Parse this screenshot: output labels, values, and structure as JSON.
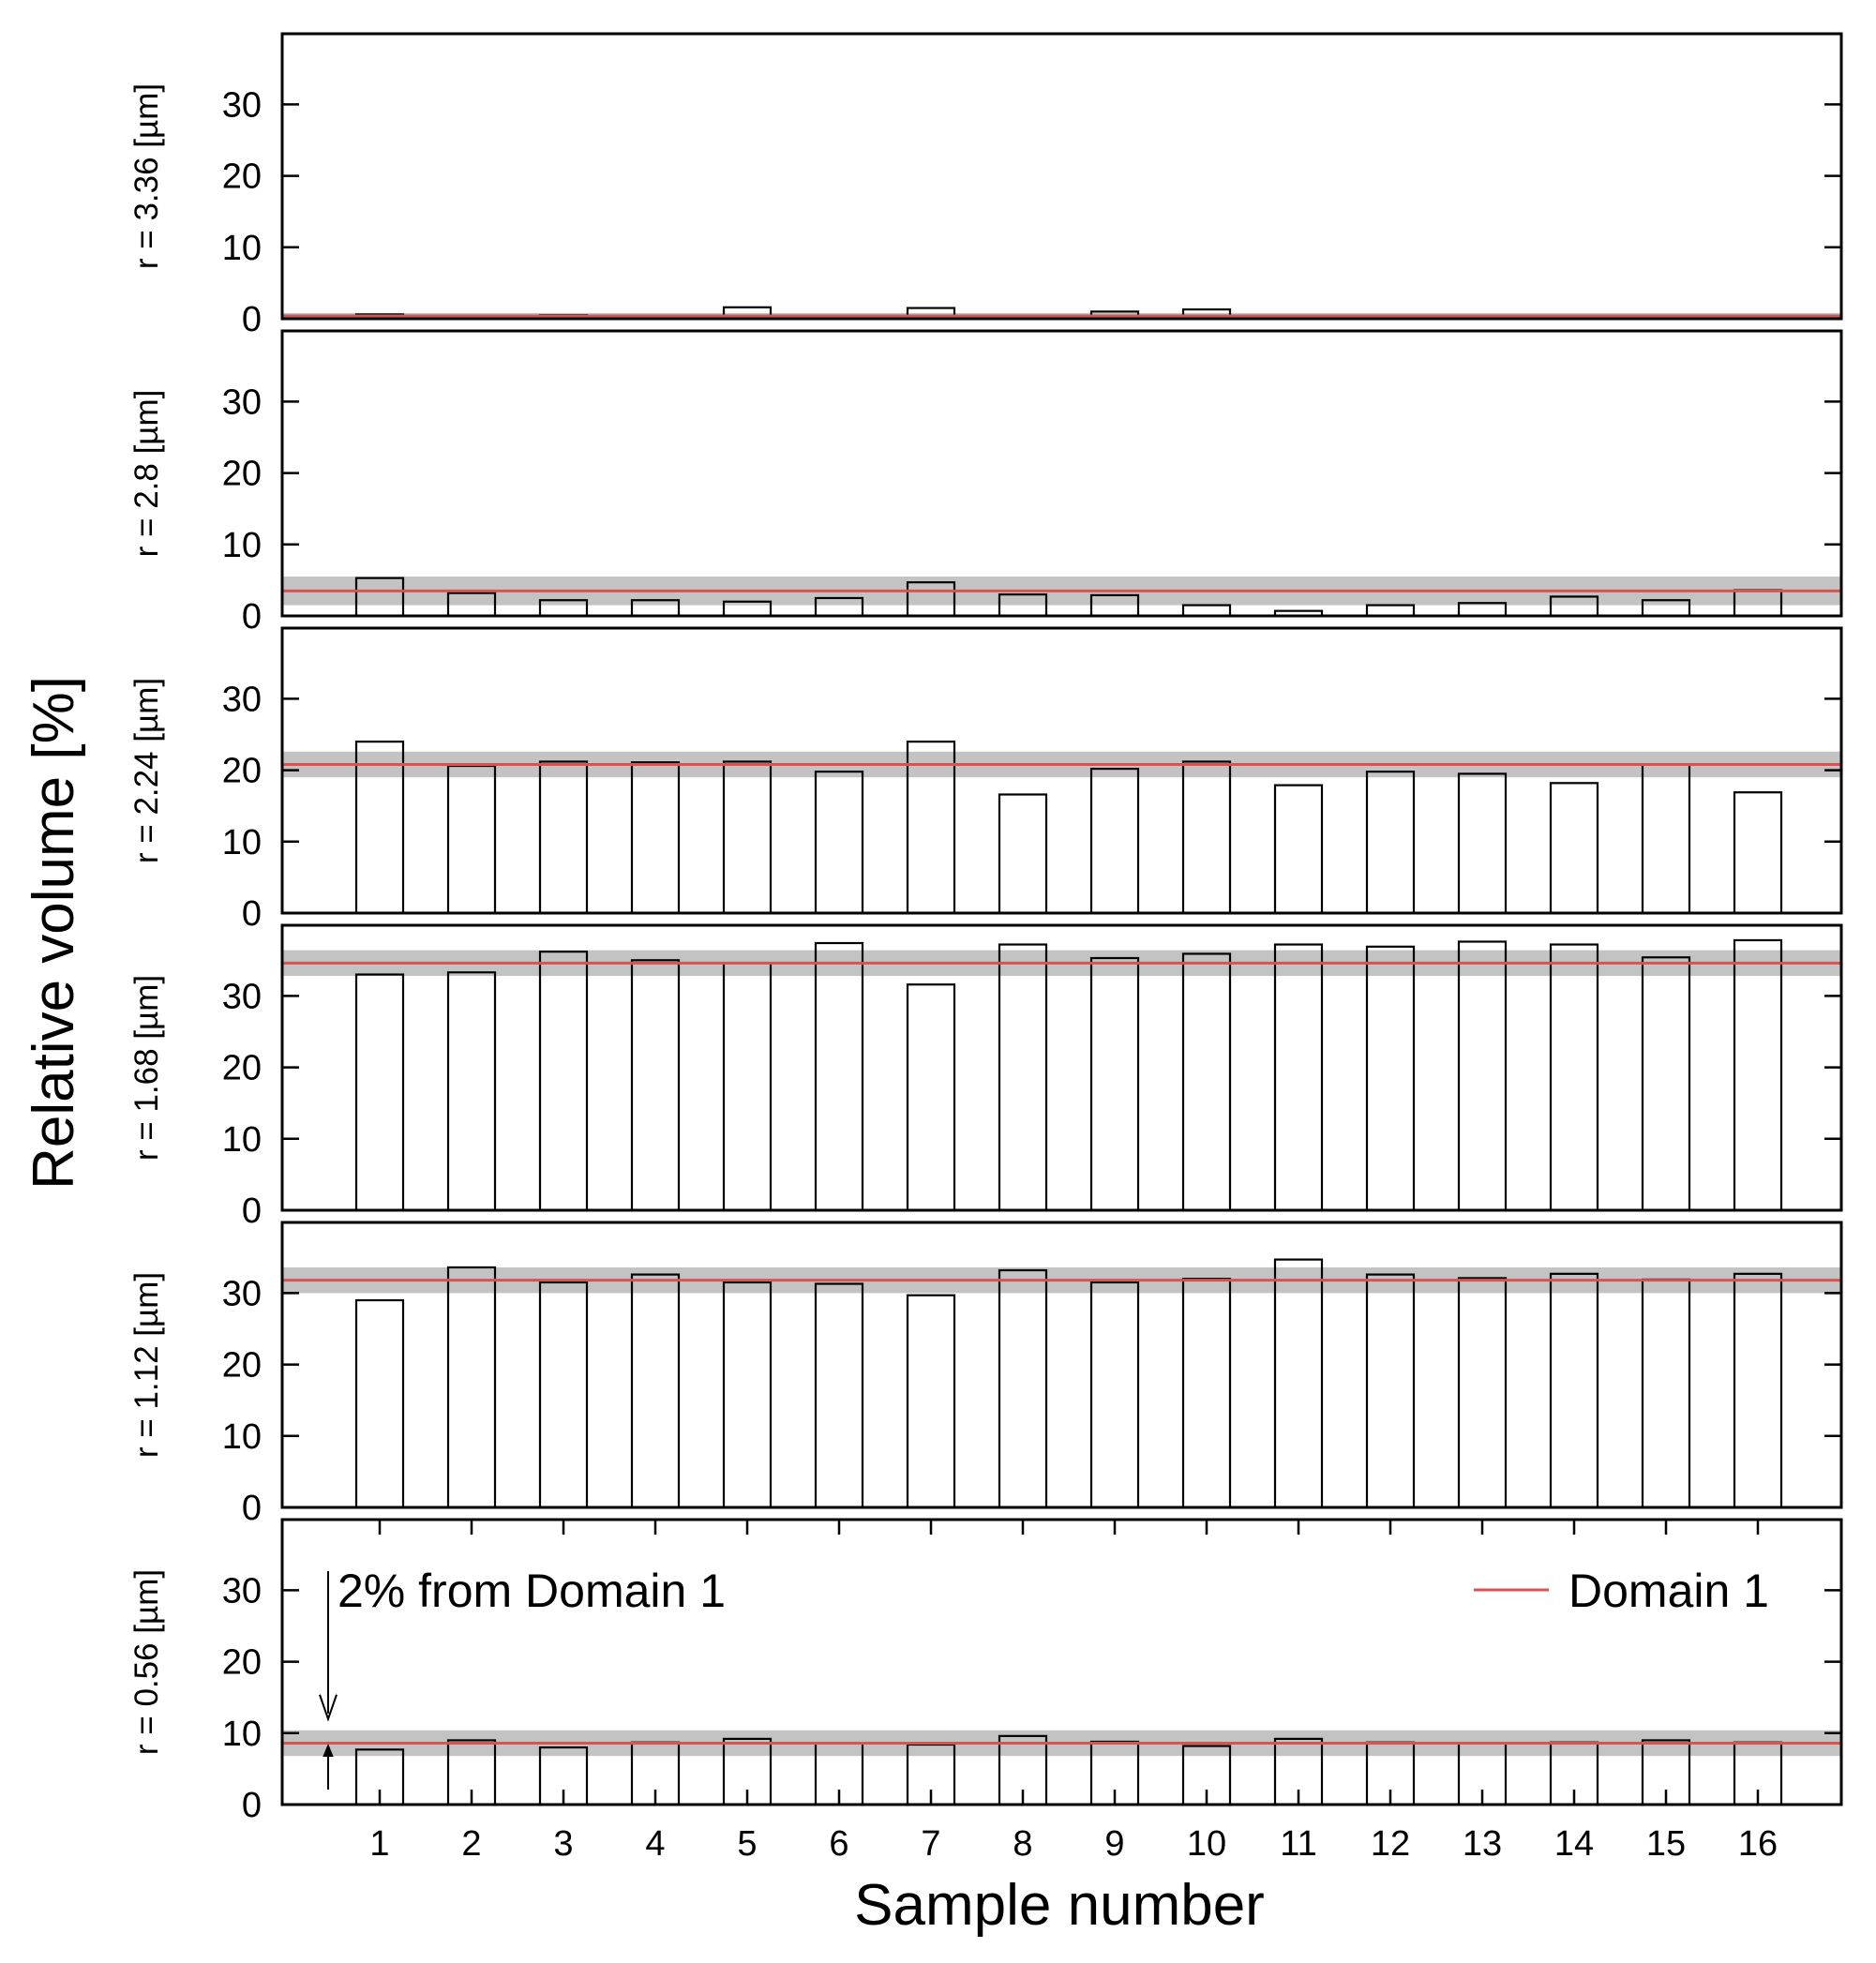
{
  "chart_data": {
    "type": "bar",
    "xlabel": "Sample number",
    "ylabel": "Relative volume [%]",
    "categories": [
      "1",
      "2",
      "3",
      "4",
      "5",
      "6",
      "7",
      "8",
      "9",
      "10",
      "11",
      "12",
      "13",
      "14",
      "15",
      "16"
    ],
    "ylim": [
      0,
      40
    ],
    "yticks": [
      "0",
      "10",
      "20",
      "30"
    ],
    "legend": {
      "label": "Domain 1",
      "color": "#d9534f",
      "placement": "top-right"
    },
    "annotation": "2% from Domain 1",
    "band_color": "#b8b8b8",
    "panels": [
      {
        "label": "r = 3.36 [µm]",
        "domain1": 0.4,
        "band": [
          0.0,
          0.8
        ],
        "values": [
          0.6,
          0.0,
          0.5,
          0.0,
          1.6,
          0.0,
          1.5,
          0.0,
          1.0,
          1.3,
          0.0,
          0.0,
          0.0,
          0.0,
          0.1,
          0.0
        ]
      },
      {
        "label": "r = 2.8 [µm]",
        "domain1": 3.5,
        "band": [
          1.5,
          5.5
        ],
        "values": [
          5.3,
          3.2,
          2.2,
          2.2,
          2.0,
          2.5,
          4.7,
          3.0,
          2.9,
          1.5,
          0.7,
          1.5,
          1.8,
          2.7,
          2.2,
          3.6
        ]
      },
      {
        "label": "r = 2.24 [µm]",
        "domain1": 20.8,
        "band": [
          19.0,
          22.6
        ],
        "values": [
          24.0,
          20.6,
          21.2,
          21.1,
          21.2,
          19.8,
          24.0,
          16.6,
          20.2,
          21.2,
          17.9,
          19.8,
          19.5,
          18.2,
          20.8,
          16.9
        ]
      },
      {
        "label": "r = 1.68 [µm]",
        "domain1": 34.6,
        "band": [
          32.8,
          36.4
        ],
        "values": [
          33.0,
          33.3,
          36.2,
          35.0,
          34.6,
          37.4,
          31.6,
          37.2,
          35.3,
          35.9,
          37.2,
          36.9,
          37.6,
          37.2,
          35.4,
          37.8
        ]
      },
      {
        "label": "r = 1.12 [µm]",
        "domain1": 31.8,
        "band": [
          30.0,
          33.6
        ],
        "values": [
          29.0,
          33.6,
          31.5,
          32.6,
          31.5,
          31.3,
          29.7,
          33.2,
          31.5,
          32.0,
          34.7,
          32.6,
          32.1,
          32.7,
          31.9,
          32.7
        ]
      },
      {
        "label": "r = 0.56 [µm]",
        "domain1": 8.6,
        "band": [
          6.8,
          10.4
        ],
        "values": [
          7.7,
          9.0,
          8.0,
          8.7,
          9.2,
          8.6,
          8.4,
          9.6,
          8.8,
          8.2,
          9.2,
          8.7,
          8.6,
          8.7,
          9.0,
          8.7
        ]
      }
    ]
  }
}
